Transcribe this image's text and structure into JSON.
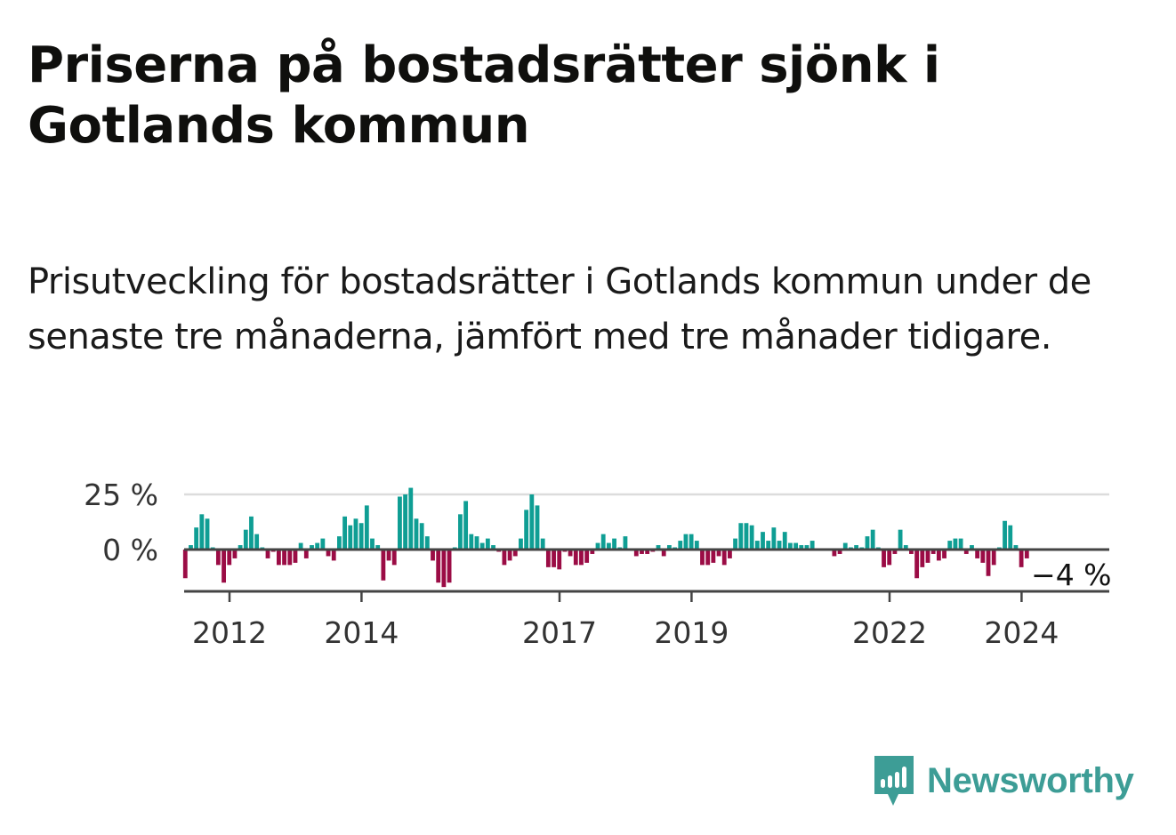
{
  "header": {
    "title": "Priserna på bostadsrätter sjönk i Gotlands kommun",
    "subtitle": "Prisutveckling för bostadsrätter i Gotlands kommun under de senaste tre månaderna, jämfört med tre månader tidigare."
  },
  "brand": {
    "name": "Newsworthy",
    "color": "#3d9d96",
    "icon": "bar-chart-speech-bubble-icon"
  },
  "colors": {
    "positive": "#0f9e94",
    "negative": "#9b0c45",
    "gridline": "#dcdcdc",
    "axis": "#444444"
  },
  "chart_data": {
    "type": "bar",
    "title": "",
    "xlabel": "",
    "ylabel": "",
    "ylim": [
      -17,
      30
    ],
    "y_ticks": [
      {
        "value": 0,
        "label": "0 %"
      },
      {
        "value": 25,
        "label": "25 %"
      }
    ],
    "x_ticks": [
      {
        "value": 2012,
        "label": "2012"
      },
      {
        "value": 2014,
        "label": "2014"
      },
      {
        "value": 2017,
        "label": "2017"
      },
      {
        "value": 2019,
        "label": "2019"
      },
      {
        "value": 2022,
        "label": "2022"
      },
      {
        "value": 2024,
        "label": "2024"
      }
    ],
    "x_start": 2011.33,
    "x_step": 0.08333,
    "last_value_label": "−4 %",
    "grid": true,
    "values": [
      -13,
      2,
      10,
      16,
      14,
      1,
      -7,
      -15,
      -7,
      -4,
      2,
      9,
      15,
      7,
      1,
      -4,
      -1,
      -7,
      -7,
      -7,
      -6,
      3,
      -4,
      2,
      3,
      5,
      -3,
      -5,
      6,
      15,
      11,
      14,
      12,
      20,
      5,
      2,
      -14,
      -5,
      -7,
      24,
      25,
      28,
      14,
      12,
      6,
      -5,
      -15,
      -17,
      -15,
      1,
      16,
      22,
      7,
      6,
      3,
      5,
      2,
      -1,
      -7,
      -5,
      -3,
      5,
      18,
      25,
      20,
      5,
      -8,
      -8,
      -9,
      -1,
      -3,
      -7,
      -7,
      -6,
      -2,
      3,
      7,
      3,
      5,
      1,
      6,
      0,
      -3,
      -2,
      -2,
      -1,
      2,
      -3,
      2,
      1,
      4,
      7,
      7,
      4,
      -7,
      -7,
      -6,
      -3,
      -7,
      -4,
      5,
      12,
      12,
      11,
      4,
      8,
      4,
      10,
      4,
      8,
      3,
      3,
      2,
      2,
      4,
      0,
      0,
      0,
      -3,
      -2,
      3,
      1,
      2,
      1,
      6,
      9,
      1,
      -8,
      -7,
      -2,
      9,
      2,
      -2,
      -13,
      -8,
      -6,
      -2,
      -5,
      -4,
      4,
      5,
      5,
      -2,
      2,
      -4,
      -6,
      -12,
      -7,
      1,
      13,
      11,
      2,
      -8,
      -4
    ]
  }
}
